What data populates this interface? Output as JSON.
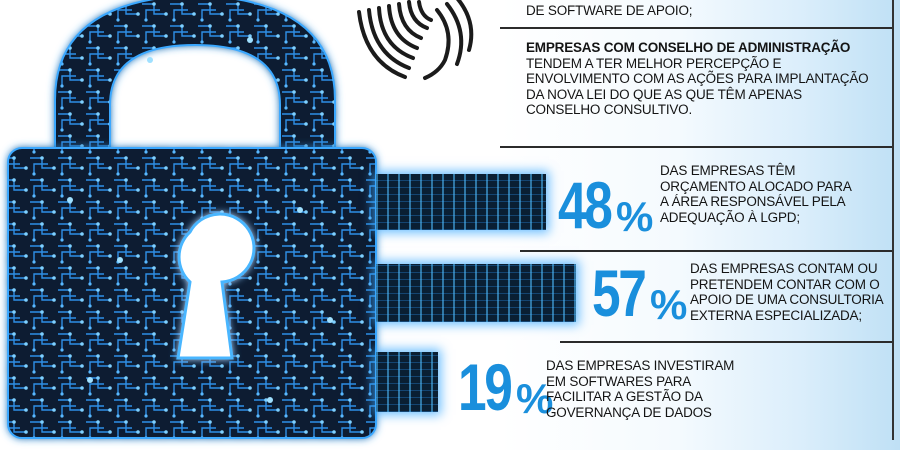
{
  "top_note": {
    "line": "DE SOFTWARE DE APOIO;"
  },
  "board_note": {
    "bold": "EMPRESAS COM CONSELHO DE ADMINISTRAÇÃO",
    "lines": [
      "TENDEM A TER MELHOR PERCEPÇÃO E",
      "ENVOLVIMENTO COM AS AÇÕES PARA IMPLANTAÇÃO",
      "DA NOVA LEI DO QUE AS QUE TÊM APENAS",
      "CONSELHO CONSULTIVO."
    ]
  },
  "stats": [
    {
      "number": "48",
      "unit": "%",
      "value": 48,
      "lines": [
        "DAS EMPRESAS TÊM",
        "ORÇAMENTO ALOCADO PARA",
        "A ÁREA RESPONSÁVEL PELA",
        "ADEQUAÇÃO À LGPD;"
      ]
    },
    {
      "number": "57",
      "unit": "%",
      "value": 57,
      "lines": [
        "DAS EMPRESAS CONTAM OU",
        "PRETENDEM CONTAR COM O",
        "APOIO DE UMA CONSULTORIA",
        "EXTERNA ESPECIALIZADA;"
      ]
    },
    {
      "number": "19",
      "unit": "%",
      "value": 19,
      "lines": [
        "DAS EMPRESAS INVESTIRAM",
        "EM SOFTWARES PARA",
        "FACILITAR A GESTÃO DA",
        "GOVERNANÇA DE DADOS"
      ]
    }
  ],
  "colors": {
    "accent": "#1a8fdc",
    "lock_dark": "#0b1e33",
    "glow": "#3aa8ff"
  },
  "icons": {
    "lock": "padlock-circuit-icon",
    "fingerprint": "fingerprint-icon"
  }
}
